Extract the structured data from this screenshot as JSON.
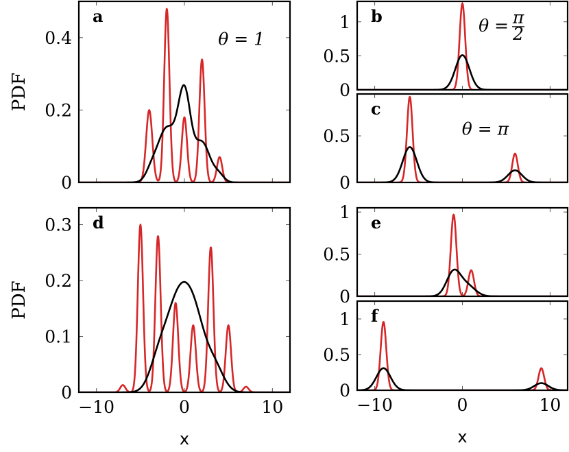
{
  "chart_data": [
    {
      "id": "a",
      "type": "line",
      "letter": "a",
      "annotation": "θ = 1",
      "ylabel": "PDF",
      "xlabel": "",
      "xlim": [
        -12,
        12
      ],
      "ylim": [
        0,
        0.5
      ],
      "xticks": [
        -10,
        0,
        10
      ],
      "xtick_labels": [
        "",
        "",
        ""
      ],
      "yticks": [
        0,
        0.2,
        0.4
      ],
      "ytick_labels": [
        "0",
        "0.2",
        "0.4"
      ],
      "series": [
        {
          "color": "#d62728",
          "peaks": [
            [
              -4,
              0.2,
              0.35
            ],
            [
              -2,
              0.48,
              0.3
            ],
            [
              0,
              0.18,
              0.3
            ],
            [
              2,
              0.34,
              0.3
            ],
            [
              4,
              0.07,
              0.3
            ]
          ]
        },
        {
          "color": "#000000",
          "peaks": [
            [
              -3.8,
              0.02,
              0.6
            ],
            [
              -2,
              0.15,
              1.1
            ],
            [
              0,
              0.23,
              0.7
            ],
            [
              2,
              0.11,
              0.9
            ],
            [
              3.9,
              0.02,
              0.6
            ]
          ]
        }
      ]
    },
    {
      "id": "b",
      "type": "line",
      "letter": "b",
      "annotation": "θ = π/2",
      "ylabel": "",
      "xlabel": "",
      "xlim": [
        -12,
        12
      ],
      "ylim": [
        0,
        1.3
      ],
      "xticks": [
        -10,
        0,
        10
      ],
      "xtick_labels": [
        "",
        "",
        ""
      ],
      "yticks": [
        0,
        0.5,
        1
      ],
      "ytick_labels": [
        "0",
        "0.5",
        "1"
      ],
      "series": [
        {
          "color": "#d62728",
          "peaks": [
            [
              0,
              1.27,
              0.32
            ]
          ]
        },
        {
          "color": "#000000",
          "peaks": [
            [
              0,
              0.51,
              0.8
            ]
          ]
        }
      ]
    },
    {
      "id": "c",
      "type": "line",
      "letter": "c",
      "annotation": "θ = π",
      "ylabel": "",
      "xlabel": "",
      "xlim": [
        -12,
        12
      ],
      "ylim": [
        0,
        0.95
      ],
      "xticks": [
        -10,
        0,
        10
      ],
      "xtick_labels": [
        "",
        "",
        ""
      ],
      "yticks": [
        0,
        0.5
      ],
      "ytick_labels": [
        "0",
        "0.5"
      ],
      "series": [
        {
          "color": "#d62728",
          "peaks": [
            [
              -6,
              0.92,
              0.32
            ],
            [
              6,
              0.31,
              0.32
            ]
          ]
        },
        {
          "color": "#000000",
          "peaks": [
            [
              -6,
              0.38,
              0.8
            ],
            [
              6,
              0.13,
              0.8
            ]
          ]
        }
      ]
    },
    {
      "id": "d",
      "type": "line",
      "letter": "d",
      "annotation": "",
      "ylabel": "PDF",
      "xlabel": "x",
      "xlim": [
        -12,
        12
      ],
      "ylim": [
        0,
        0.33
      ],
      "xticks": [
        -10,
        0,
        10
      ],
      "xtick_labels": [
        "−10",
        "0",
        "10"
      ],
      "yticks": [
        0,
        0.1,
        0.2,
        0.3
      ],
      "ytick_labels": [
        "0",
        "0.1",
        "0.2",
        "0.3"
      ],
      "series": [
        {
          "color": "#d62728",
          "peaks": [
            [
              -7,
              0.013,
              0.3
            ],
            [
              -5,
              0.3,
              0.3
            ],
            [
              -3,
              0.28,
              0.3
            ],
            [
              -1,
              0.16,
              0.3
            ],
            [
              1,
              0.12,
              0.3
            ],
            [
              3,
              0.26,
              0.3
            ],
            [
              5,
              0.12,
              0.3
            ],
            [
              7,
              0.01,
              0.3
            ]
          ]
        },
        {
          "color": "#000000",
          "peaks": [
            [
              -3,
              0.045,
              1.0
            ],
            [
              -0.7,
              0.16,
              1.4
            ],
            [
              1.3,
              0.1,
              1.2
            ],
            [
              3.5,
              0.04,
              1.0
            ]
          ]
        }
      ]
    },
    {
      "id": "e",
      "type": "line",
      "letter": "e",
      "annotation": "",
      "ylabel": "",
      "xlabel": "",
      "xlim": [
        -12,
        12
      ],
      "ylim": [
        0,
        1.05
      ],
      "xticks": [
        -10,
        0,
        10
      ],
      "xtick_labels": [
        "",
        "",
        ""
      ],
      "yticks": [
        0,
        0.5,
        1
      ],
      "ytick_labels": [
        "0",
        "0.5",
        "1"
      ],
      "series": [
        {
          "color": "#d62728",
          "peaks": [
            [
              -1,
              0.97,
              0.32
            ],
            [
              1,
              0.31,
              0.32
            ]
          ]
        },
        {
          "color": "#000000",
          "peaks": [
            [
              -1,
              0.29,
              0.8
            ],
            [
              0.6,
              0.12,
              0.9
            ]
          ]
        }
      ]
    },
    {
      "id": "f",
      "type": "line",
      "letter": "f",
      "annotation": "",
      "ylabel": "",
      "xlabel": "x",
      "xlim": [
        -12,
        12
      ],
      "ylim": [
        0,
        1.25
      ],
      "xticks": [
        -10,
        0,
        10
      ],
      "xtick_labels": [
        "−10",
        "0",
        "10"
      ],
      "yticks": [
        0,
        0.5,
        1
      ],
      "ytick_labels": [
        "0",
        "0.5",
        "1"
      ],
      "series": [
        {
          "color": "#d62728",
          "peaks": [
            [
              -9,
              0.96,
              0.32
            ],
            [
              9,
              0.31,
              0.32
            ]
          ]
        },
        {
          "color": "#000000",
          "peaks": [
            [
              -9,
              0.31,
              0.8
            ],
            [
              9,
              0.1,
              0.8
            ]
          ]
        }
      ]
    }
  ]
}
